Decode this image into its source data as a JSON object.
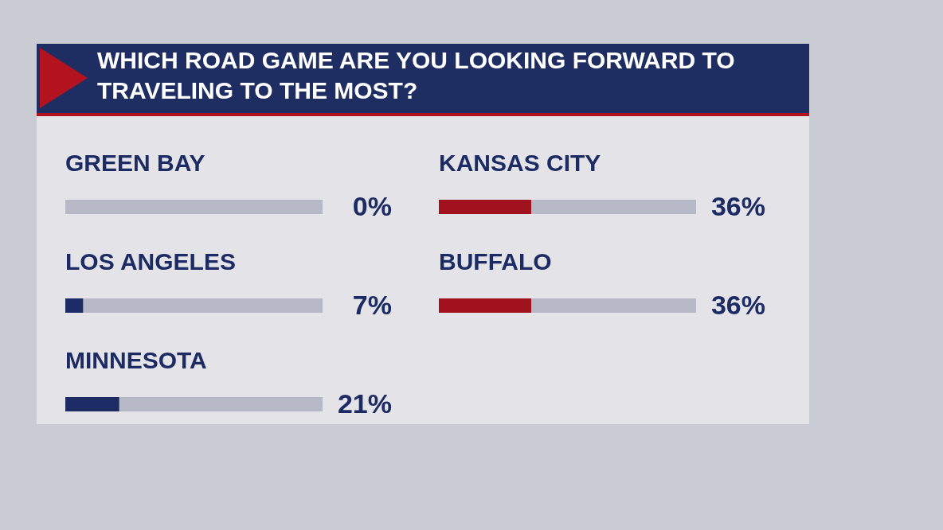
{
  "chart_data": [
    {
      "type": "bar",
      "orientation": "horizontal",
      "stacked": true,
      "title": "WHICH ROAD GAME ARE YOU LOOKING FORWARD TO TRAVELING TO THE MOST?",
      "categories": [
        "GREEN BAY",
        "LOS ANGELES",
        "MINNESOTA"
      ],
      "series": [
        {
          "color": "#1c2b63",
          "values": [
            0,
            7,
            21
          ],
          "value_labels": [
            "0%",
            "7%",
            "21%"
          ]
        },
        {
          "color": "#b7bac6",
          "values": [
            100,
            93,
            79
          ]
        }
      ],
      "xlim": [
        0,
        100
      ]
    },
    {
      "type": "bar",
      "orientation": "horizontal",
      "stacked": true,
      "categories": [
        "KANSAS CITY",
        "BUFFALO"
      ],
      "series": [
        {
          "color": "#a1121f",
          "values": [
            36,
            36
          ],
          "value_labels": [
            "36%",
            "36%"
          ]
        },
        {
          "color": "#b7bac6",
          "values": [
            64,
            64
          ]
        }
      ],
      "xlim": [
        0,
        100
      ]
    }
  ]
}
